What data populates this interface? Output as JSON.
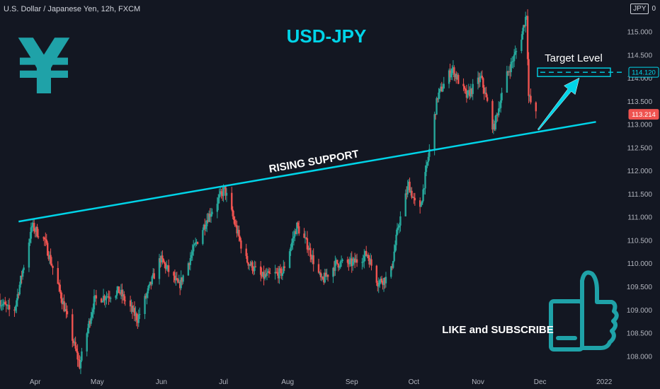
{
  "header": {
    "symbol": "U.S. Dollar / Japanese Yen, 12h, FXCM",
    "currency": "JPY",
    "currency_suffix": "0"
  },
  "colors": {
    "background": "#131722",
    "up": "#26a69a",
    "down": "#ef5350",
    "accent": "#00d4e8",
    "axis_text": "#b2b5be",
    "yen_icon": "#1fa2a8"
  },
  "annotations": {
    "pair_title": "USD-JPY",
    "support_label": "RISING SUPPORT",
    "target_label": "Target Level",
    "cta_label": "LIKE and SUBSCRIBE",
    "yen_symbol": "¥"
  },
  "icons": {
    "yen": "yen-icon",
    "thumbs_up": "thumbs-up-icon",
    "arrow": "up-right-arrow-icon"
  },
  "chart_data": {
    "type": "candlestick",
    "title": "USD-JPY",
    "xlabel": "",
    "ylabel": "",
    "x_ticks": [
      "Apr",
      "May",
      "Jun",
      "Jul",
      "Aug",
      "Sep",
      "Oct",
      "Nov",
      "Dec",
      "2022"
    ],
    "y_ticks": [
      "108.000",
      "108.500",
      "109.000",
      "109.500",
      "110.000",
      "110.500",
      "111.000",
      "111.500",
      "112.000",
      "112.500",
      "113.000",
      "113.500",
      "114.000",
      "114.500",
      "115.000"
    ],
    "ylim": [
      107.7,
      115.45
    ],
    "price_path": [
      {
        "date": "2021-03-15",
        "price": 109.2
      },
      {
        "date": "2021-03-22",
        "price": 108.9
      },
      {
        "date": "2021-03-31",
        "price": 110.8
      },
      {
        "date": "2021-04-06",
        "price": 110.5
      },
      {
        "date": "2021-04-14",
        "price": 109.3
      },
      {
        "date": "2021-04-23",
        "price": 107.8
      },
      {
        "date": "2021-04-30",
        "price": 109.2
      },
      {
        "date": "2021-05-12",
        "price": 109.4
      },
      {
        "date": "2021-05-21",
        "price": 108.8
      },
      {
        "date": "2021-06-01",
        "price": 110.1
      },
      {
        "date": "2021-06-10",
        "price": 109.5
      },
      {
        "date": "2021-06-18",
        "price": 110.4
      },
      {
        "date": "2021-06-24",
        "price": 111.0
      },
      {
        "date": "2021-07-02",
        "price": 111.6
      },
      {
        "date": "2021-07-12",
        "price": 110.1
      },
      {
        "date": "2021-07-20",
        "price": 109.7
      },
      {
        "date": "2021-07-30",
        "price": 109.8
      },
      {
        "date": "2021-08-06",
        "price": 110.8
      },
      {
        "date": "2021-08-11",
        "price": 110.4
      },
      {
        "date": "2021-08-18",
        "price": 109.6
      },
      {
        "date": "2021-08-25",
        "price": 110.0
      },
      {
        "date": "2021-09-02",
        "price": 110.0
      },
      {
        "date": "2021-09-09",
        "price": 110.2
      },
      {
        "date": "2021-09-14",
        "price": 109.6
      },
      {
        "date": "2021-09-20",
        "price": 109.7
      },
      {
        "date": "2021-09-24",
        "price": 110.8
      },
      {
        "date": "2021-09-29",
        "price": 111.7
      },
      {
        "date": "2021-10-04",
        "price": 111.0
      },
      {
        "date": "2021-10-13",
        "price": 113.6
      },
      {
        "date": "2021-10-20",
        "price": 114.2
      },
      {
        "date": "2021-10-27",
        "price": 113.6
      },
      {
        "date": "2021-11-03",
        "price": 114.0
      },
      {
        "date": "2021-11-09",
        "price": 112.9
      },
      {
        "date": "2021-11-15",
        "price": 114.0
      },
      {
        "date": "2021-11-22",
        "price": 114.8
      },
      {
        "date": "2021-11-25",
        "price": 115.4
      },
      {
        "date": "2021-11-26",
        "price": 113.6
      },
      {
        "date": "2021-11-29",
        "price": 113.2
      }
    ],
    "rising_support": {
      "start": {
        "date": "2021-03-24",
        "price": 110.9
      },
      "end": {
        "date": "2021-12-28",
        "price": 113.05
      }
    },
    "target_level": 114.12,
    "price_labels": [
      {
        "value": 114.12,
        "text": "114.120",
        "style": "accent"
      },
      {
        "value": 113.214,
        "text": "113.214",
        "style": "down"
      }
    ],
    "grid": false,
    "legend": "none"
  }
}
